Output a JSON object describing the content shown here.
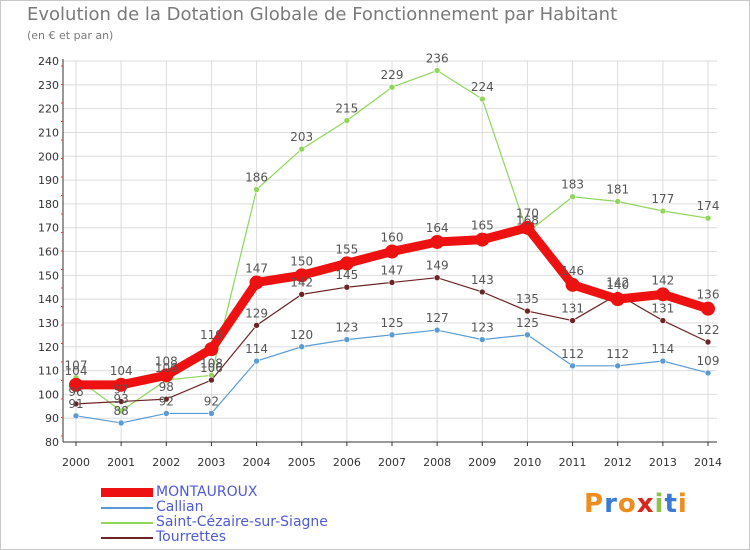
{
  "title": "Evolution de la Dotation Globale de Fonctionnement par Habitant",
  "subtitle": "(en € et par an)",
  "logo_text": "Proxiti",
  "colors": {
    "MONTAUROUX": "#ee1111",
    "Callian": "#5b9bd5",
    "Saint-Cézaire-sur-Siagne": "#8fd65a",
    "Tourrettes": "#6e2424",
    "grid": "#dddddd",
    "axis": "#333333",
    "label": "#555555"
  },
  "chart_data": {
    "type": "line",
    "title": "Evolution de la Dotation Globale de Fonctionnement par Habitant",
    "subtitle": "(en € et par an)",
    "xlabel": "",
    "ylabel": "",
    "x": [
      "2000",
      "2001",
      "2002",
      "2003",
      "2004",
      "2005",
      "2006",
      "2007",
      "2008",
      "2009",
      "2010",
      "2011",
      "2012",
      "2013",
      "2014"
    ],
    "ylim": [
      80,
      240
    ],
    "yticks": [
      80,
      90,
      100,
      110,
      120,
      130,
      140,
      150,
      160,
      170,
      180,
      190,
      200,
      210,
      220,
      230,
      240
    ],
    "grid": true,
    "legend_position": "bottom",
    "series": [
      {
        "name": "MONTAUROUX",
        "values": [
          104,
          104,
          108,
          119,
          147,
          150,
          155,
          160,
          164,
          165,
          170,
          146,
          140,
          142,
          136
        ],
        "highlight": true
      },
      {
        "name": "Callian",
        "values": [
          91,
          88,
          92,
          92,
          114,
          120,
          123,
          125,
          127,
          123,
          125,
          112,
          112,
          114,
          109
        ]
      },
      {
        "name": "Saint-Cézaire-sur-Siagne",
        "values": [
          107,
          93,
          106,
          108,
          186,
          203,
          215,
          229,
          236,
          224,
          168,
          183,
          181,
          177,
          174
        ]
      },
      {
        "name": "Tourrettes",
        "values": [
          96,
          97,
          98,
          106,
          129,
          142,
          145,
          147,
          149,
          143,
          135,
          131,
          142,
          131,
          122
        ]
      }
    ]
  }
}
